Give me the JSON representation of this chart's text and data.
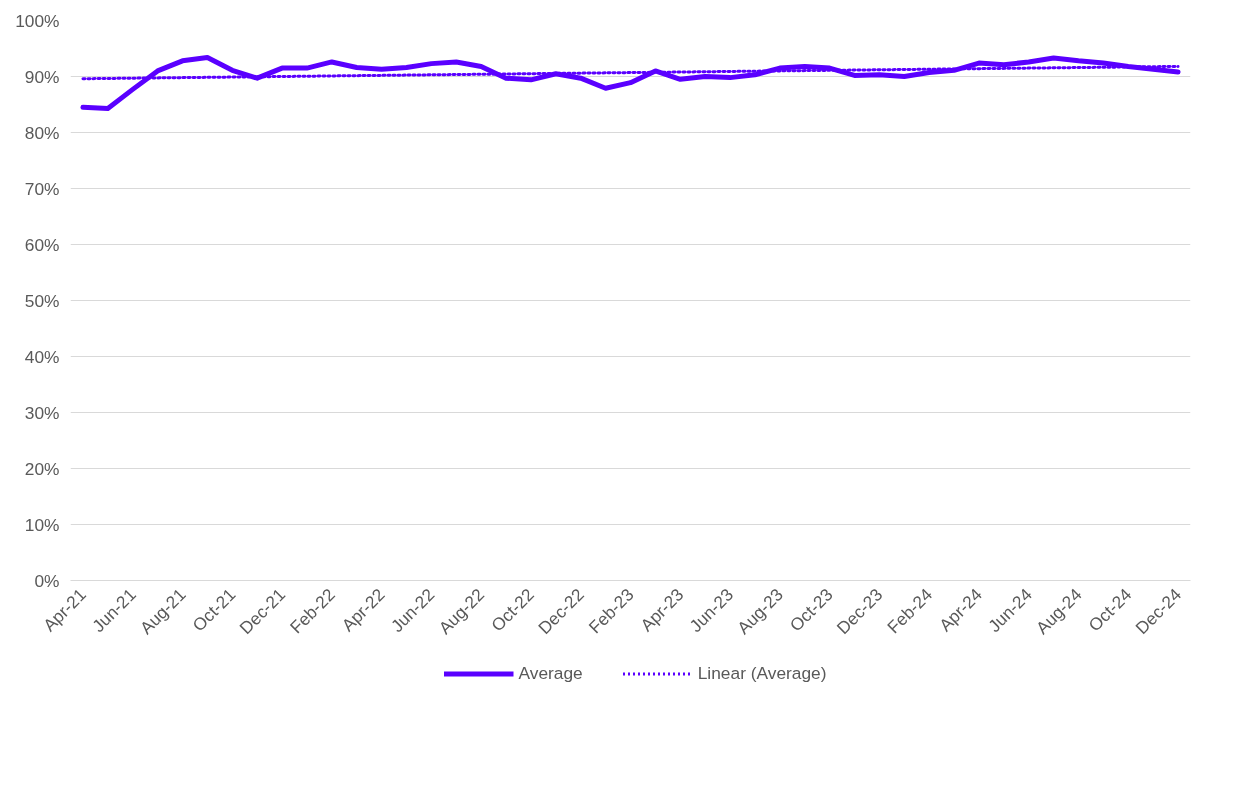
{
  "chart_data": {
    "type": "line",
    "categories": [
      "Apr-21",
      null,
      "Jun-21",
      null,
      "Aug-21",
      null,
      "Oct-21",
      null,
      "Dec-21",
      null,
      "Feb-22",
      null,
      "Apr-22",
      null,
      "Jun-22",
      null,
      "Aug-22",
      null,
      "Oct-22",
      null,
      "Dec-22",
      null,
      "Feb-23",
      null,
      "Apr-23",
      null,
      "Jun-23",
      null,
      "Aug-23",
      null,
      "Oct-23",
      null,
      "Dec-23",
      null,
      "Feb-24",
      null,
      "Apr-24",
      null,
      "Jun-24",
      null,
      "Aug-24",
      null,
      "Oct-24",
      null,
      "Dec-24"
    ],
    "series": [
      {
        "name": "Average",
        "color": "#5a00ff",
        "line_style": "solid",
        "values": [
          84.5,
          84.3,
          87.7,
          91.0,
          92.8,
          93.4,
          91.1,
          89.7,
          91.5,
          91.5,
          92.6,
          91.6,
          91.3,
          91.6,
          92.3,
          92.6,
          91.8,
          89.7,
          89.4,
          90.5,
          89.7,
          87.9,
          88.9,
          91.0,
          89.5,
          90.0,
          89.8,
          90.3,
          91.5,
          91.8,
          91.5,
          90.2,
          90.3,
          90.0,
          90.7,
          91.1,
          92.4,
          92.1,
          92.6,
          93.3,
          92.8,
          92.4,
          91.8,
          91.3,
          90.8
        ]
      },
      {
        "name": "Linear (Average)",
        "color": "#5a00ff",
        "line_style": "dotted",
        "x": [
          "Apr-21",
          "Dec-24"
        ],
        "values": [
          89.6,
          91.8
        ]
      }
    ],
    "ylim": [
      0,
      100
    ],
    "yticks": [
      {
        "value": 0,
        "label": "0%"
      },
      {
        "value": 10,
        "label": "10%"
      },
      {
        "value": 20,
        "label": "20%"
      },
      {
        "value": 30,
        "label": "30%"
      },
      {
        "value": 40,
        "label": "40%"
      },
      {
        "value": 50,
        "label": "50%"
      },
      {
        "value": 60,
        "label": "60%"
      },
      {
        "value": 70,
        "label": "70%"
      },
      {
        "value": 80,
        "label": "80%"
      },
      {
        "value": 90,
        "label": "90%"
      },
      {
        "value": 100,
        "label": "100%"
      }
    ],
    "grid": "y",
    "legend": "bottom",
    "marker": "none"
  }
}
